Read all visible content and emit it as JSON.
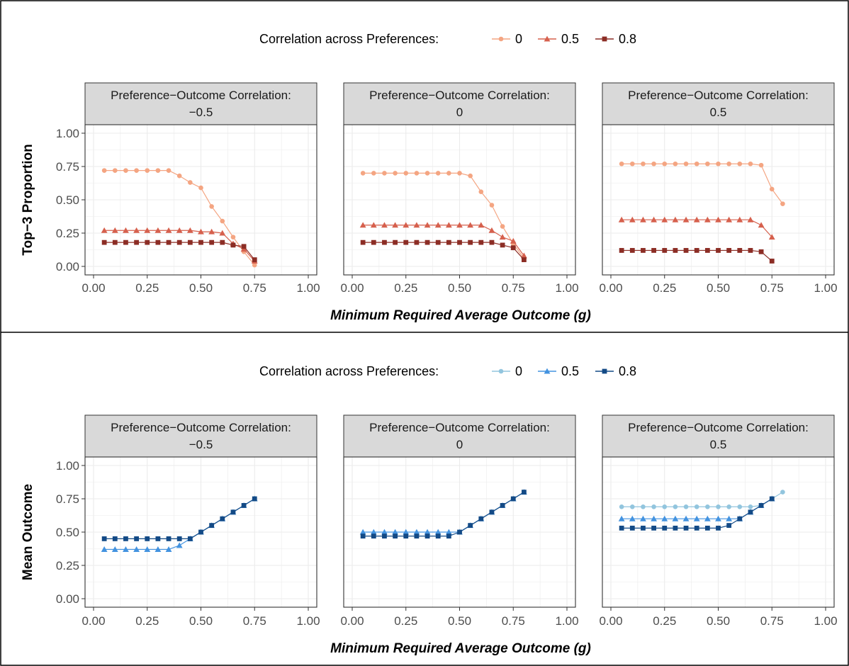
{
  "chart_data": [
    {
      "type": "line",
      "ylabel": "Top−3 Proportion",
      "xlabel": "Minimum Required Average Outcome (g)",
      "xlim": [
        0,
        1
      ],
      "ylim": [
        0,
        1
      ],
      "x_ticks": [
        "0.00",
        "0.25",
        "0.50",
        "0.75",
        "1.00"
      ],
      "y_ticks": [
        "0.00",
        "0.25",
        "0.50",
        "0.75",
        "1.00"
      ],
      "grid": true,
      "legend": {
        "title": "Correlation across Preferences:",
        "position": "top",
        "entries": [
          {
            "label": "0",
            "color": "#F4A582",
            "marker": "circle"
          },
          {
            "label": "0.5",
            "color": "#D6604D",
            "marker": "triangle"
          },
          {
            "label": "0.8",
            "color": "#8C2D25",
            "marker": "square"
          }
        ]
      },
      "panels": [
        {
          "strip": [
            "Preference−Outcome Correlation:",
            "−0.5"
          ],
          "series": [
            {
              "name": "0",
              "x": [
                0.05,
                0.1,
                0.15,
                0.2,
                0.25,
                0.3,
                0.35,
                0.4,
                0.45,
                0.5,
                0.55,
                0.6,
                0.65,
                0.7,
                0.75
              ],
              "y": [
                0.72,
                0.72,
                0.72,
                0.72,
                0.72,
                0.72,
                0.72,
                0.68,
                0.63,
                0.59,
                0.45,
                0.34,
                0.22,
                0.11,
                0.01
              ]
            },
            {
              "name": "0.5",
              "x": [
                0.05,
                0.1,
                0.15,
                0.2,
                0.25,
                0.3,
                0.35,
                0.4,
                0.45,
                0.5,
                0.55,
                0.6,
                0.65,
                0.7,
                0.75
              ],
              "y": [
                0.27,
                0.27,
                0.27,
                0.27,
                0.27,
                0.27,
                0.27,
                0.27,
                0.27,
                0.26,
                0.26,
                0.25,
                0.17,
                0.13,
                0.04
              ]
            },
            {
              "name": "0.8",
              "x": [
                0.05,
                0.1,
                0.15,
                0.2,
                0.25,
                0.3,
                0.35,
                0.4,
                0.45,
                0.5,
                0.55,
                0.6,
                0.65,
                0.7,
                0.75
              ],
              "y": [
                0.18,
                0.18,
                0.18,
                0.18,
                0.18,
                0.18,
                0.18,
                0.18,
                0.18,
                0.18,
                0.18,
                0.18,
                0.16,
                0.15,
                0.05
              ]
            }
          ]
        },
        {
          "strip": [
            "Preference−Outcome Correlation:",
            "0"
          ],
          "series": [
            {
              "name": "0",
              "x": [
                0.05,
                0.1,
                0.15,
                0.2,
                0.25,
                0.3,
                0.35,
                0.4,
                0.45,
                0.5,
                0.55,
                0.6,
                0.65,
                0.7,
                0.75,
                0.8
              ],
              "y": [
                0.7,
                0.7,
                0.7,
                0.7,
                0.7,
                0.7,
                0.7,
                0.7,
                0.7,
                0.7,
                0.68,
                0.56,
                0.46,
                0.3,
                0.17,
                0.06
              ]
            },
            {
              "name": "0.5",
              "x": [
                0.05,
                0.1,
                0.15,
                0.2,
                0.25,
                0.3,
                0.35,
                0.4,
                0.45,
                0.5,
                0.55,
                0.6,
                0.65,
                0.7,
                0.75,
                0.8
              ],
              "y": [
                0.31,
                0.31,
                0.31,
                0.31,
                0.31,
                0.31,
                0.31,
                0.31,
                0.31,
                0.31,
                0.31,
                0.31,
                0.27,
                0.22,
                0.19,
                0.08
              ]
            },
            {
              "name": "0.8",
              "x": [
                0.05,
                0.1,
                0.15,
                0.2,
                0.25,
                0.3,
                0.35,
                0.4,
                0.45,
                0.5,
                0.55,
                0.6,
                0.65,
                0.7,
                0.75,
                0.8
              ],
              "y": [
                0.18,
                0.18,
                0.18,
                0.18,
                0.18,
                0.18,
                0.18,
                0.18,
                0.18,
                0.18,
                0.18,
                0.18,
                0.18,
                0.16,
                0.14,
                0.05
              ]
            }
          ]
        },
        {
          "strip": [
            "Preference−Outcome Correlation:",
            "0.5"
          ],
          "series": [
            {
              "name": "0",
              "x": [
                0.05,
                0.1,
                0.15,
                0.2,
                0.25,
                0.3,
                0.35,
                0.4,
                0.45,
                0.5,
                0.55,
                0.6,
                0.65,
                0.7,
                0.75,
                0.8
              ],
              "y": [
                0.77,
                0.77,
                0.77,
                0.77,
                0.77,
                0.77,
                0.77,
                0.77,
                0.77,
                0.77,
                0.77,
                0.77,
                0.77,
                0.76,
                0.58,
                0.47
              ]
            },
            {
              "name": "0.5",
              "x": [
                0.05,
                0.1,
                0.15,
                0.2,
                0.25,
                0.3,
                0.35,
                0.4,
                0.45,
                0.5,
                0.55,
                0.6,
                0.65,
                0.7,
                0.75
              ],
              "y": [
                0.35,
                0.35,
                0.35,
                0.35,
                0.35,
                0.35,
                0.35,
                0.35,
                0.35,
                0.35,
                0.35,
                0.35,
                0.35,
                0.31,
                0.22
              ]
            },
            {
              "name": "0.8",
              "x": [
                0.05,
                0.1,
                0.15,
                0.2,
                0.25,
                0.3,
                0.35,
                0.4,
                0.45,
                0.5,
                0.55,
                0.6,
                0.65,
                0.7,
                0.75
              ],
              "y": [
                0.12,
                0.12,
                0.12,
                0.12,
                0.12,
                0.12,
                0.12,
                0.12,
                0.12,
                0.12,
                0.12,
                0.12,
                0.12,
                0.11,
                0.04
              ]
            }
          ]
        }
      ]
    },
    {
      "type": "line",
      "ylabel": "Mean Outcome",
      "xlabel": "Minimum Required Average Outcome (g)",
      "xlim": [
        0,
        1
      ],
      "ylim": [
        0,
        1
      ],
      "x_ticks": [
        "0.00",
        "0.25",
        "0.50",
        "0.75",
        "1.00"
      ],
      "y_ticks": [
        "0.00",
        "0.25",
        "0.50",
        "0.75",
        "1.00"
      ],
      "grid": true,
      "legend": {
        "title": "Correlation across Preferences:",
        "position": "top",
        "entries": [
          {
            "label": "0",
            "color": "#92C5DE",
            "marker": "circle"
          },
          {
            "label": "0.5",
            "color": "#4393E0",
            "marker": "triangle"
          },
          {
            "label": "0.8",
            "color": "#134A86",
            "marker": "square"
          }
        ]
      },
      "panels": [
        {
          "strip": [
            "Preference−Outcome Correlation:",
            "−0.5"
          ],
          "series": [
            {
              "name": "0",
              "x": [
                0.45,
                0.5,
                0.55,
                0.6,
                0.65,
                0.7,
                0.75
              ],
              "y": [
                0.45,
                0.5,
                0.55,
                0.6,
                0.65,
                0.7,
                0.75
              ]
            },
            {
              "name": "0.5",
              "x": [
                0.05,
                0.1,
                0.15,
                0.2,
                0.25,
                0.3,
                0.35,
                0.4,
                0.45,
                0.5,
                0.55,
                0.6,
                0.65,
                0.7,
                0.75
              ],
              "y": [
                0.37,
                0.37,
                0.37,
                0.37,
                0.37,
                0.37,
                0.37,
                0.4,
                0.45,
                0.5,
                0.55,
                0.6,
                0.65,
                0.7,
                0.75
              ]
            },
            {
              "name": "0.8",
              "x": [
                0.05,
                0.1,
                0.15,
                0.2,
                0.25,
                0.3,
                0.35,
                0.4,
                0.45,
                0.5,
                0.55,
                0.6,
                0.65,
                0.7,
                0.75
              ],
              "y": [
                0.45,
                0.45,
                0.45,
                0.45,
                0.45,
                0.45,
                0.45,
                0.45,
                0.45,
                0.5,
                0.55,
                0.6,
                0.65,
                0.7,
                0.75
              ]
            }
          ]
        },
        {
          "strip": [
            "Preference−Outcome Correlation:",
            "0"
          ],
          "series": [
            {
              "name": "0",
              "x": [
                0.5,
                0.55,
                0.6,
                0.65,
                0.7,
                0.75,
                0.8
              ],
              "y": [
                0.5,
                0.55,
                0.6,
                0.65,
                0.7,
                0.75,
                0.8
              ]
            },
            {
              "name": "0.5",
              "x": [
                0.05,
                0.1,
                0.15,
                0.2,
                0.25,
                0.3,
                0.35,
                0.4,
                0.45,
                0.5,
                0.55,
                0.6,
                0.65,
                0.7,
                0.75,
                0.8
              ],
              "y": [
                0.5,
                0.5,
                0.5,
                0.5,
                0.5,
                0.5,
                0.5,
                0.5,
                0.5,
                0.5,
                0.55,
                0.6,
                0.65,
                0.7,
                0.75,
                0.8
              ]
            },
            {
              "name": "0.8",
              "x": [
                0.05,
                0.1,
                0.15,
                0.2,
                0.25,
                0.3,
                0.35,
                0.4,
                0.45,
                0.5,
                0.55,
                0.6,
                0.65,
                0.7,
                0.75,
                0.8
              ],
              "y": [
                0.47,
                0.47,
                0.47,
                0.47,
                0.47,
                0.47,
                0.47,
                0.47,
                0.47,
                0.5,
                0.55,
                0.6,
                0.65,
                0.7,
                0.75,
                0.8
              ]
            }
          ]
        },
        {
          "strip": [
            "Preference−Outcome Correlation:",
            "0.5"
          ],
          "series": [
            {
              "name": "0",
              "x": [
                0.05,
                0.1,
                0.15,
                0.2,
                0.25,
                0.3,
                0.35,
                0.4,
                0.45,
                0.5,
                0.55,
                0.6,
                0.65,
                0.7,
                0.75,
                0.8
              ],
              "y": [
                0.69,
                0.69,
                0.69,
                0.69,
                0.69,
                0.69,
                0.69,
                0.69,
                0.69,
                0.69,
                0.69,
                0.69,
                0.69,
                0.7,
                0.75,
                0.8
              ]
            },
            {
              "name": "0.5",
              "x": [
                0.05,
                0.1,
                0.15,
                0.2,
                0.25,
                0.3,
                0.35,
                0.4,
                0.45,
                0.5,
                0.55,
                0.6,
                0.65,
                0.7,
                0.75
              ],
              "y": [
                0.6,
                0.6,
                0.6,
                0.6,
                0.6,
                0.6,
                0.6,
                0.6,
                0.6,
                0.6,
                0.6,
                0.6,
                0.65,
                0.7,
                0.75
              ]
            },
            {
              "name": "0.8",
              "x": [
                0.05,
                0.1,
                0.15,
                0.2,
                0.25,
                0.3,
                0.35,
                0.4,
                0.45,
                0.5,
                0.55,
                0.6,
                0.65,
                0.7,
                0.75
              ],
              "y": [
                0.53,
                0.53,
                0.53,
                0.53,
                0.53,
                0.53,
                0.53,
                0.53,
                0.53,
                0.53,
                0.55,
                0.6,
                0.65,
                0.7,
                0.75
              ]
            }
          ]
        }
      ]
    }
  ]
}
